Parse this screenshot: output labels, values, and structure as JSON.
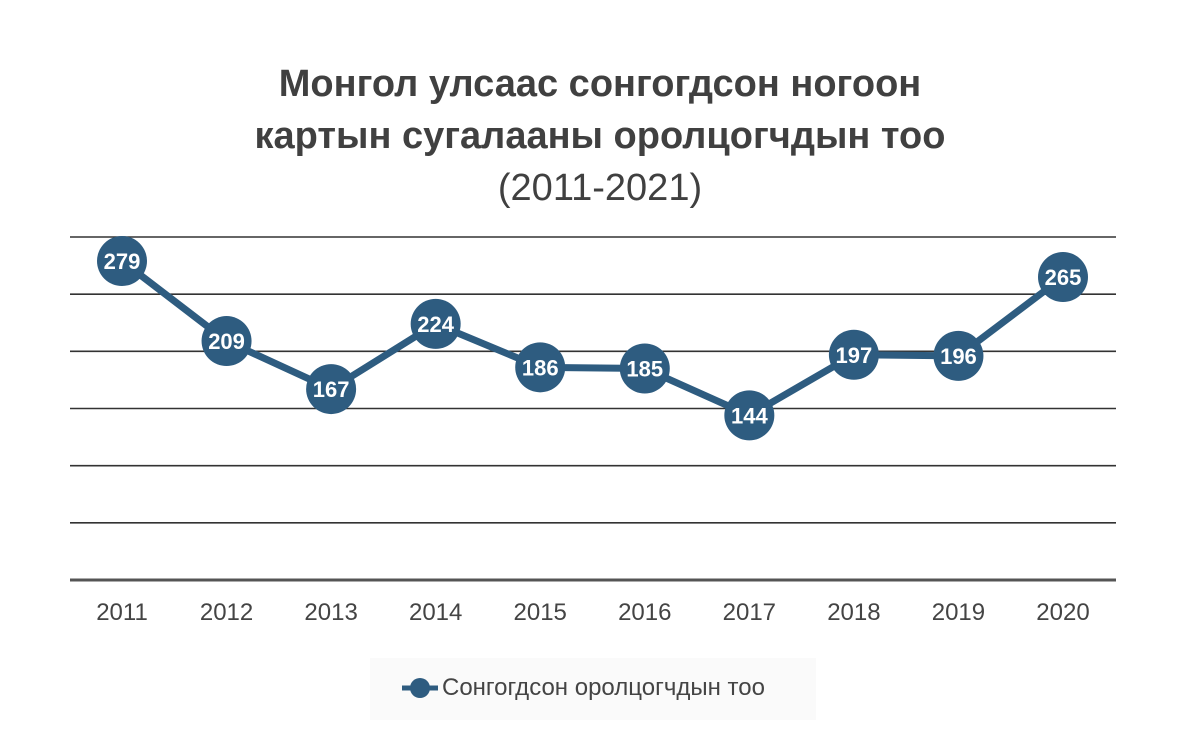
{
  "chart_data": {
    "type": "line",
    "title_lines": [
      "Монгол улсаас сонгогдсон ногоон",
      "картын сугалааны оролцогчдын тоо"
    ],
    "subtitle": "(2011-2021)",
    "categories": [
      "2011",
      "2012",
      "2013",
      "2014",
      "2015",
      "2016",
      "2017",
      "2018",
      "2019",
      "2020"
    ],
    "series": [
      {
        "name": "Сонгогдсон оролцогчдын тоо",
        "values": [
          279,
          209,
          167,
          224,
          186,
          185,
          144,
          197,
          196,
          265
        ],
        "color": "#2e5c80"
      }
    ],
    "ylim": [
      0,
      300
    ],
    "grid": true,
    "legend_position": "bottom"
  }
}
